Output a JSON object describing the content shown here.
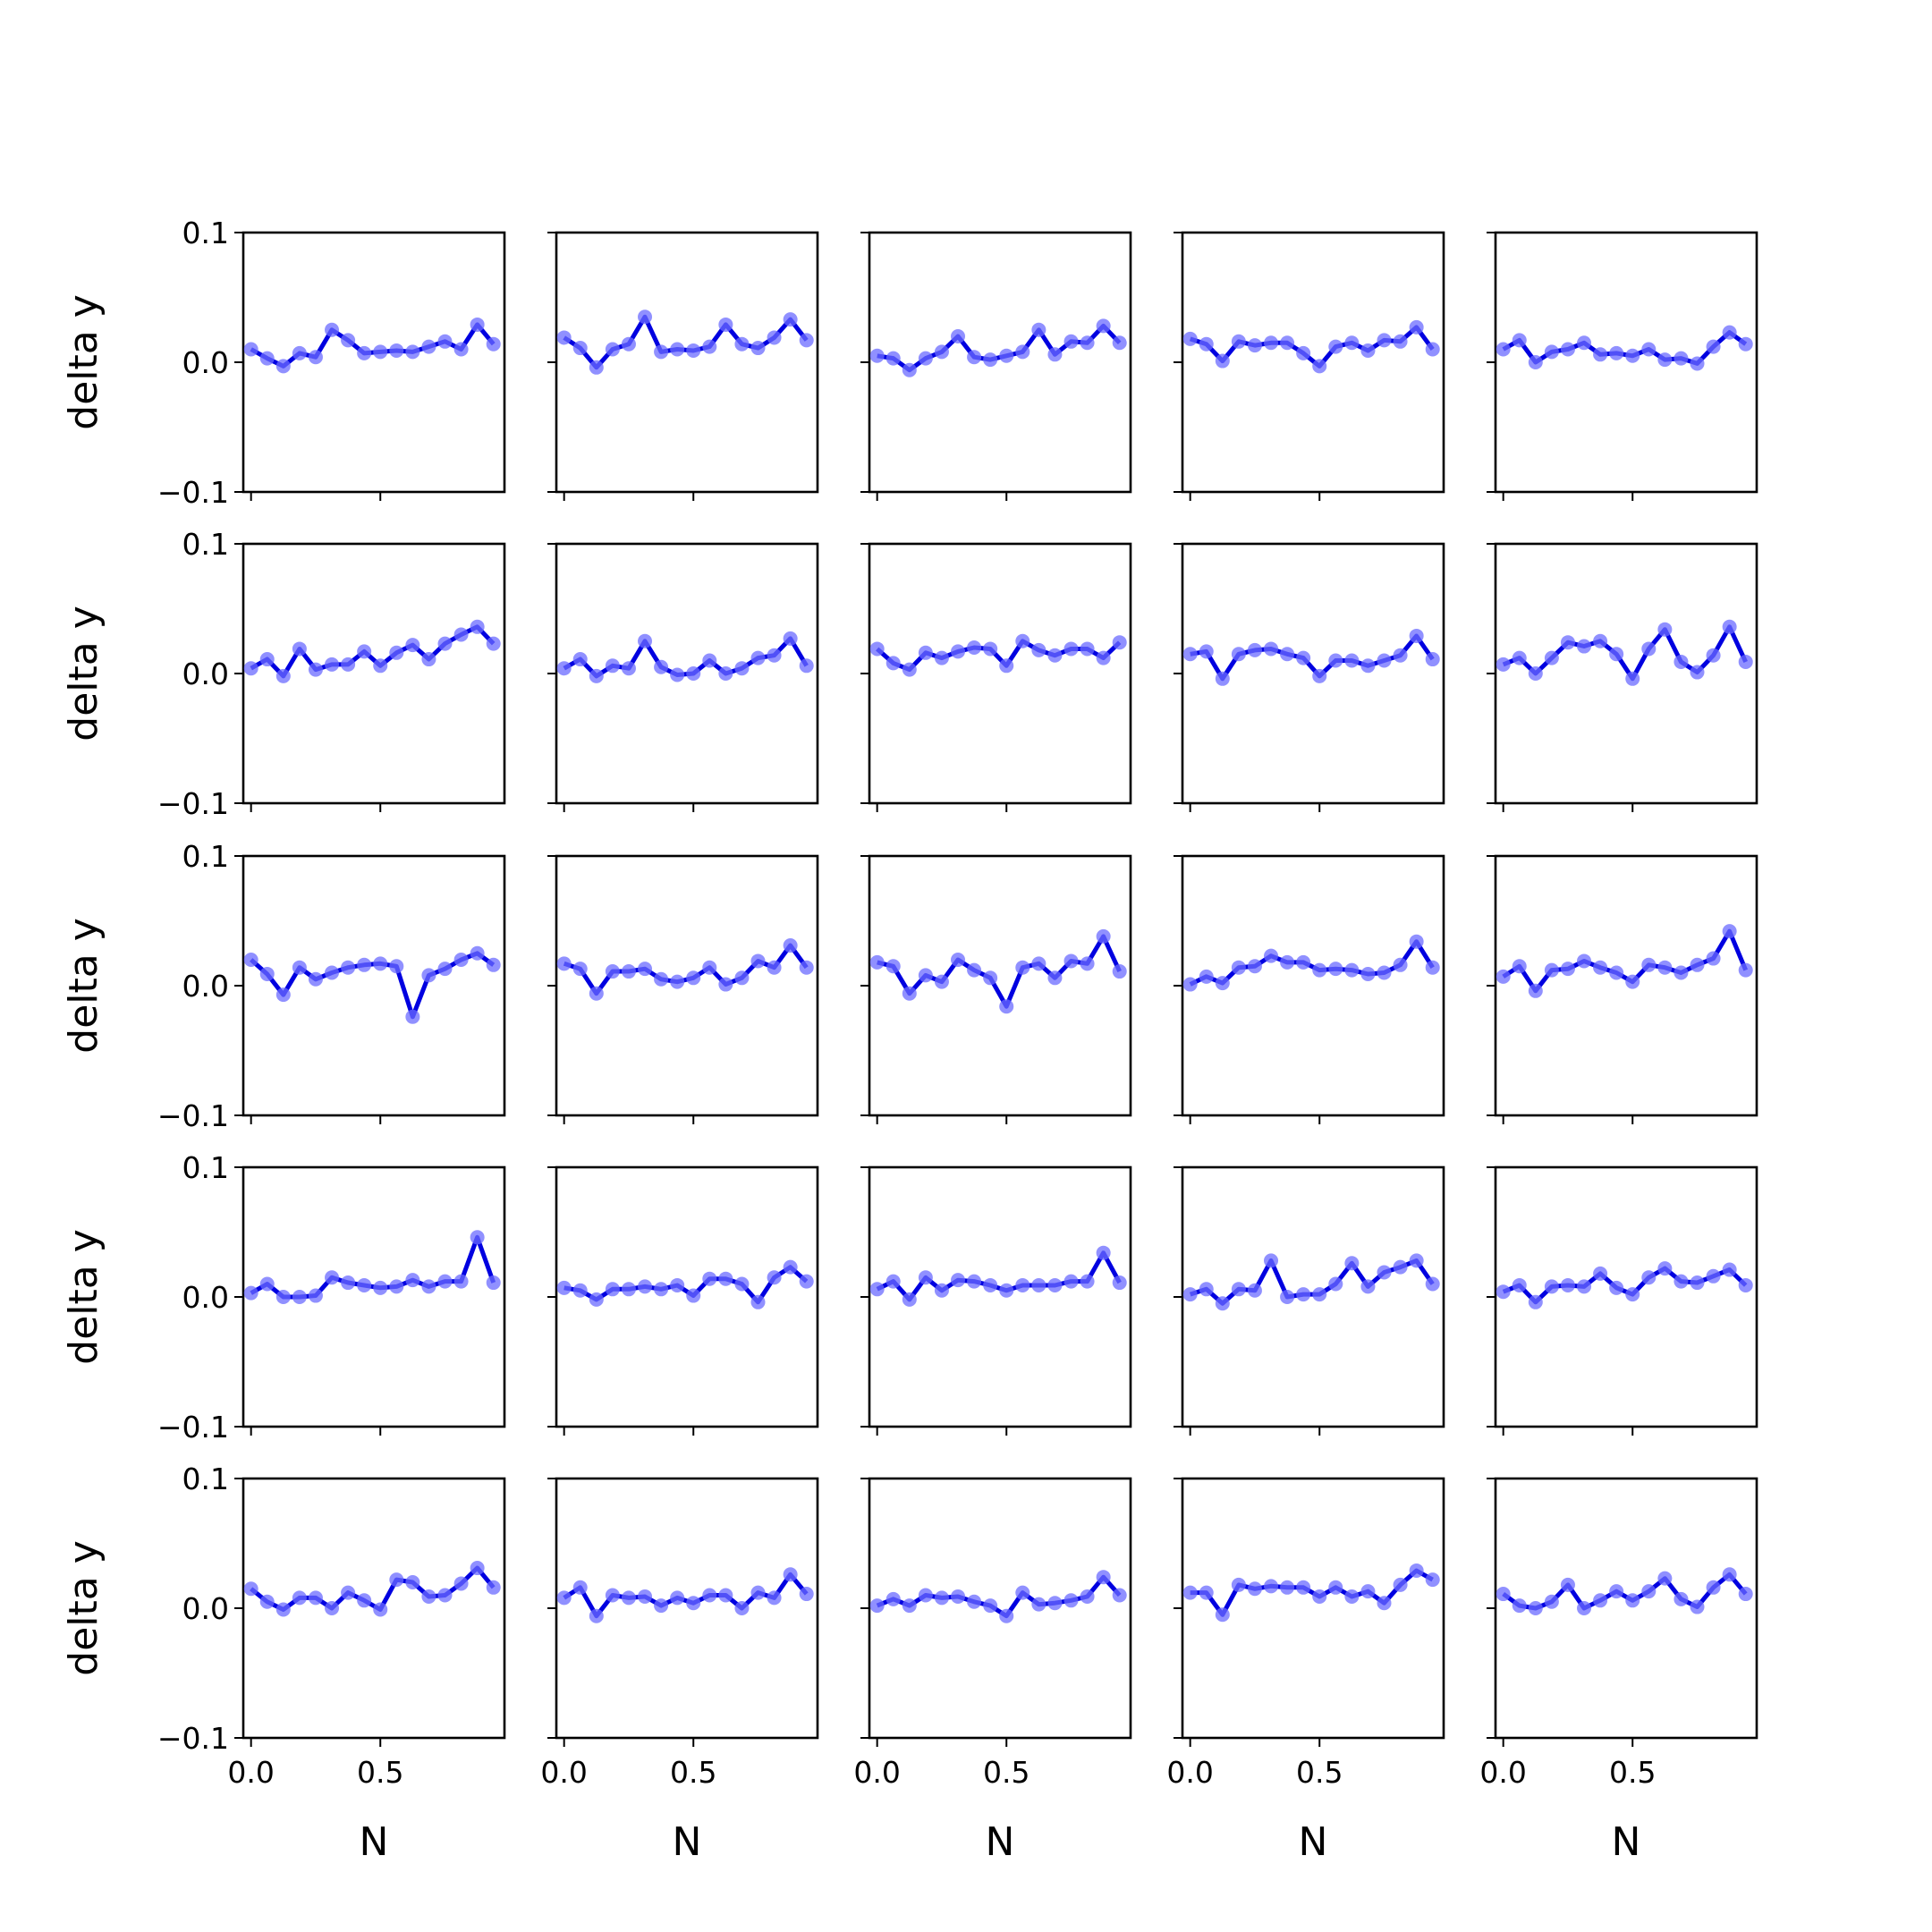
{
  "chart_data": {
    "type": "line",
    "layout": "5x5 grid of subplots with shared axes",
    "xlabel": "N",
    "ylabel": "delta y",
    "xlim": [
      -0.03,
      0.98
    ],
    "ylim": [
      -0.1,
      0.1
    ],
    "xticks": [
      0.0,
      0.5
    ],
    "xtick_labels": [
      "0.0",
      "0.5"
    ],
    "yticks": [
      -0.1,
      0.0,
      0.1
    ],
    "ytick_labels": [
      "−0.1",
      "0.0",
      "0.1"
    ],
    "x": [
      0.0,
      0.0625,
      0.125,
      0.1875,
      0.25,
      0.3125,
      0.375,
      0.4375,
      0.5,
      0.5625,
      0.625,
      0.6875,
      0.75,
      0.8125,
      0.875,
      0.9375
    ],
    "line_color": "#0000e0",
    "marker_color": "#6b6bff",
    "panels": [
      {
        "row": 0,
        "col": 0,
        "values": [
          0.01,
          0.003,
          -0.003,
          0.007,
          0.004,
          0.025,
          0.017,
          0.007,
          0.008,
          0.009,
          0.008,
          0.012,
          0.016,
          0.01,
          0.029,
          0.014
        ]
      },
      {
        "row": 0,
        "col": 1,
        "values": [
          0.019,
          0.011,
          -0.004,
          0.01,
          0.014,
          0.035,
          0.008,
          0.01,
          0.009,
          0.012,
          0.029,
          0.014,
          0.011,
          0.019,
          0.033,
          0.017
        ]
      },
      {
        "row": 0,
        "col": 2,
        "values": [
          0.005,
          0.003,
          -0.006,
          0.003,
          0.008,
          0.02,
          0.004,
          0.002,
          0.005,
          0.008,
          0.025,
          0.006,
          0.016,
          0.015,
          0.028,
          0.015
        ]
      },
      {
        "row": 0,
        "col": 3,
        "values": [
          0.018,
          0.014,
          0.001,
          0.016,
          0.013,
          0.015,
          0.015,
          0.007,
          -0.003,
          0.012,
          0.015,
          0.009,
          0.017,
          0.016,
          0.027,
          0.01
        ]
      },
      {
        "row": 0,
        "col": 4,
        "values": [
          0.01,
          0.017,
          0.0,
          0.008,
          0.01,
          0.015,
          0.006,
          0.007,
          0.005,
          0.01,
          0.002,
          0.003,
          -0.001,
          0.012,
          0.023,
          0.014
        ]
      },
      {
        "row": 1,
        "col": 0,
        "values": [
          0.004,
          0.011,
          -0.002,
          0.019,
          0.003,
          0.007,
          0.007,
          0.017,
          0.006,
          0.016,
          0.022,
          0.011,
          0.023,
          0.03,
          0.036,
          0.023
        ]
      },
      {
        "row": 1,
        "col": 1,
        "values": [
          0.004,
          0.011,
          -0.002,
          0.006,
          0.004,
          0.025,
          0.005,
          -0.001,
          0.0,
          0.01,
          0.0,
          0.004,
          0.012,
          0.014,
          0.027,
          0.006
        ]
      },
      {
        "row": 1,
        "col": 2,
        "values": [
          0.019,
          0.008,
          0.003,
          0.016,
          0.012,
          0.017,
          0.02,
          0.019,
          0.006,
          0.025,
          0.018,
          0.014,
          0.019,
          0.019,
          0.012,
          0.024
        ]
      },
      {
        "row": 1,
        "col": 3,
        "values": [
          0.015,
          0.017,
          -0.004,
          0.015,
          0.018,
          0.019,
          0.015,
          0.012,
          -0.002,
          0.01,
          0.01,
          0.006,
          0.01,
          0.014,
          0.029,
          0.011
        ]
      },
      {
        "row": 1,
        "col": 4,
        "values": [
          0.007,
          0.012,
          0.0,
          0.012,
          0.024,
          0.021,
          0.025,
          0.015,
          -0.004,
          0.019,
          0.034,
          0.009,
          0.001,
          0.014,
          0.036,
          0.009
        ]
      },
      {
        "row": 2,
        "col": 0,
        "values": [
          0.02,
          0.009,
          -0.007,
          0.014,
          0.005,
          0.01,
          0.014,
          0.016,
          0.017,
          0.015,
          -0.024,
          0.008,
          0.013,
          0.02,
          0.025,
          0.016
        ]
      },
      {
        "row": 2,
        "col": 1,
        "values": [
          0.017,
          0.013,
          -0.006,
          0.011,
          0.011,
          0.013,
          0.005,
          0.003,
          0.006,
          0.014,
          0.001,
          0.006,
          0.019,
          0.014,
          0.031,
          0.014
        ]
      },
      {
        "row": 2,
        "col": 2,
        "values": [
          0.018,
          0.015,
          -0.006,
          0.008,
          0.003,
          0.02,
          0.012,
          0.006,
          -0.016,
          0.014,
          0.017,
          0.006,
          0.019,
          0.017,
          0.038,
          0.011
        ]
      },
      {
        "row": 2,
        "col": 3,
        "values": [
          0.001,
          0.007,
          0.002,
          0.014,
          0.015,
          0.023,
          0.018,
          0.018,
          0.012,
          0.013,
          0.012,
          0.009,
          0.01,
          0.016,
          0.034,
          0.014
        ]
      },
      {
        "row": 2,
        "col": 4,
        "values": [
          0.007,
          0.015,
          -0.004,
          0.012,
          0.013,
          0.019,
          0.014,
          0.01,
          0.003,
          0.016,
          0.014,
          0.01,
          0.016,
          0.021,
          0.042,
          0.012
        ]
      },
      {
        "row": 3,
        "col": 0,
        "values": [
          0.003,
          0.01,
          0.0,
          0.0,
          0.001,
          0.015,
          0.011,
          0.009,
          0.007,
          0.008,
          0.013,
          0.008,
          0.012,
          0.012,
          0.046,
          0.011
        ]
      },
      {
        "row": 3,
        "col": 1,
        "values": [
          0.007,
          0.005,
          -0.002,
          0.006,
          0.006,
          0.008,
          0.006,
          0.009,
          0.001,
          0.014,
          0.014,
          0.01,
          -0.004,
          0.015,
          0.023,
          0.012
        ]
      },
      {
        "row": 3,
        "col": 2,
        "values": [
          0.006,
          0.012,
          -0.002,
          0.015,
          0.005,
          0.013,
          0.012,
          0.009,
          0.005,
          0.009,
          0.009,
          0.009,
          0.012,
          0.012,
          0.034,
          0.011
        ]
      },
      {
        "row": 3,
        "col": 3,
        "values": [
          0.002,
          0.006,
          -0.005,
          0.006,
          0.005,
          0.028,
          0.0,
          0.002,
          0.002,
          0.01,
          0.026,
          0.008,
          0.019,
          0.023,
          0.028,
          0.01
        ]
      },
      {
        "row": 3,
        "col": 4,
        "values": [
          0.004,
          0.009,
          -0.004,
          0.008,
          0.009,
          0.008,
          0.018,
          0.007,
          0.002,
          0.015,
          0.022,
          0.012,
          0.011,
          0.016,
          0.021,
          0.009
        ]
      },
      {
        "row": 4,
        "col": 0,
        "values": [
          0.015,
          0.005,
          -0.001,
          0.008,
          0.008,
          0.0,
          0.012,
          0.006,
          -0.001,
          0.022,
          0.02,
          0.009,
          0.01,
          0.019,
          0.031,
          0.016
        ]
      },
      {
        "row": 4,
        "col": 1,
        "values": [
          0.008,
          0.016,
          -0.006,
          0.01,
          0.008,
          0.009,
          0.002,
          0.008,
          0.004,
          0.01,
          0.01,
          0.0,
          0.012,
          0.008,
          0.026,
          0.011
        ]
      },
      {
        "row": 4,
        "col": 2,
        "values": [
          0.002,
          0.007,
          0.002,
          0.01,
          0.008,
          0.009,
          0.005,
          0.002,
          -0.006,
          0.012,
          0.003,
          0.004,
          0.006,
          0.009,
          0.024,
          0.01
        ]
      },
      {
        "row": 4,
        "col": 3,
        "values": [
          0.012,
          0.012,
          -0.005,
          0.018,
          0.015,
          0.017,
          0.016,
          0.016,
          0.009,
          0.016,
          0.009,
          0.013,
          0.004,
          0.018,
          0.029,
          0.022
        ]
      },
      {
        "row": 4,
        "col": 4,
        "values": [
          0.011,
          0.002,
          0.0,
          0.005,
          0.018,
          0.0,
          0.006,
          0.013,
          0.006,
          0.013,
          0.023,
          0.007,
          0.001,
          0.016,
          0.026,
          0.011
        ]
      }
    ]
  }
}
